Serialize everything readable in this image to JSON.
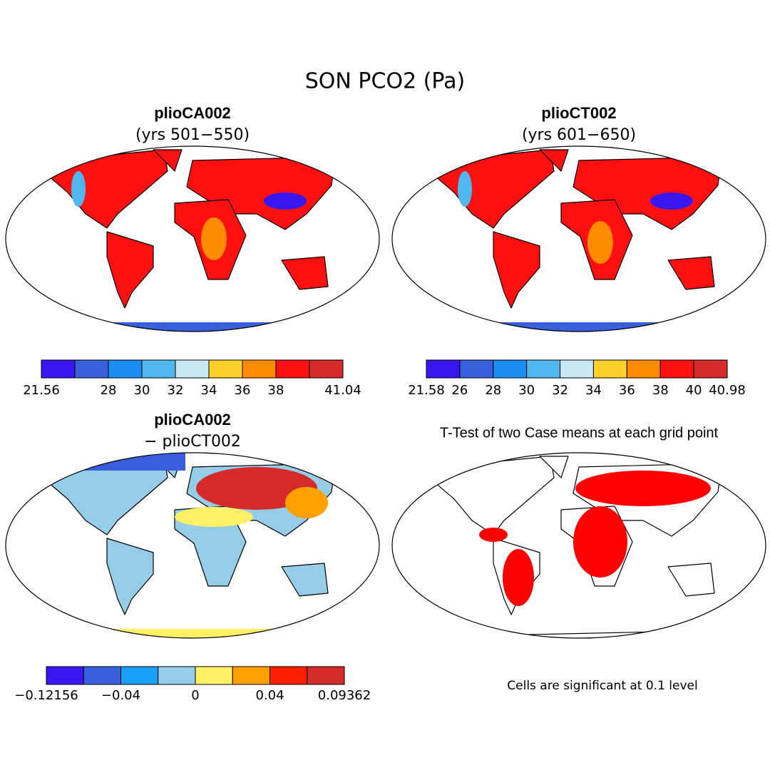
{
  "title": "SON PCO2 (Pa)",
  "panels": [
    {
      "title": "plioCA002",
      "subtitle": "(yrs 501−550)",
      "colorbar": {
        "colors": [
          "#3a16f0",
          "#3a5fdc",
          "#1a8ef0",
          "#50b8ee",
          "#c8e8f6",
          "#ffd02c",
          "#ff8c00",
          "#ff1010",
          "#d42a2a"
        ],
        "labels": [
          "21.56",
          null,
          "28",
          "30",
          "32",
          "34",
          "36",
          "38",
          null,
          "41.04"
        ]
      }
    },
    {
      "title": "plioCT002",
      "subtitle": "(yrs 601−650)",
      "colorbar": {
        "colors": [
          "#3a16f0",
          "#3a5fdc",
          "#1a8ef0",
          "#50b8ee",
          "#c8e8f6",
          "#ffd02c",
          "#ff8c00",
          "#ff1010",
          "#d42a2a"
        ],
        "labels": [
          "21.58",
          "26",
          "28",
          "30",
          "32",
          "34",
          "36",
          "38",
          "40",
          "40.98"
        ]
      }
    },
    {
      "title": "plioCA002",
      "subtitle": "− plioCT002",
      "colorbar": {
        "colors": [
          "#3a16f0",
          "#3a5fdc",
          "#1aa0f8",
          "#95cde8",
          "#fff066",
          "#ffa000",
          "#ff2000",
          "#d42a2a"
        ],
        "labels": [
          "−0.12156",
          null,
          "−0.04",
          null,
          "0",
          null,
          "0.04",
          null,
          "0.09362"
        ]
      }
    },
    {
      "title": "T-Test of two Case means at each grid point",
      "note": "Cells are significant at 0.1 level"
    }
  ]
}
